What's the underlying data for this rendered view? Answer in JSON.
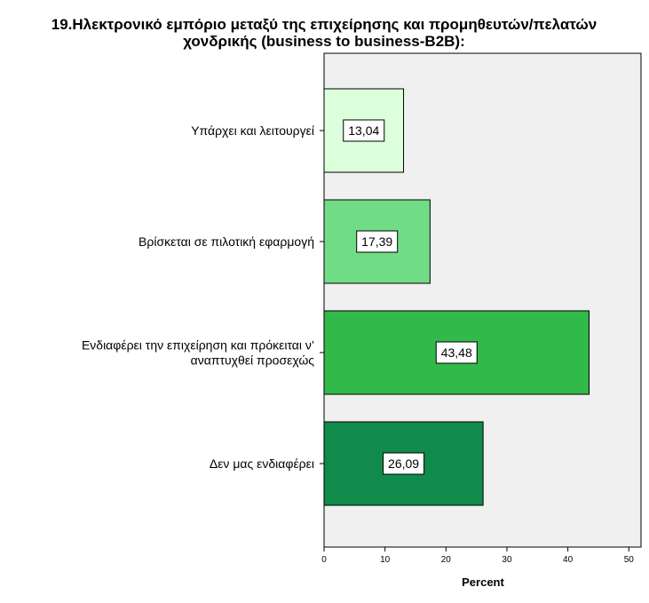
{
  "chart_data": {
    "type": "bar",
    "orientation": "horizontal",
    "title_lines": [
      "19.Ηλεκτρονικό εμπόριο μεταξύ της επιχείρησης και προμηθευτών/πελατών",
      "χονδρικής (business to business-B2B):"
    ],
    "categories": [
      [
        "Υπάρχει και λειτουργεί"
      ],
      [
        "Βρίσκεται σε πιλοτική εφαρμογή"
      ],
      [
        "Ενδιαφέρει την επιχείρηση και πρόκειται ν’",
        "αναπτυχθεί προσεχώς"
      ],
      [
        "Δεν μας ενδιαφέρει"
      ]
    ],
    "values": [
      13.04,
      17.39,
      43.48,
      26.09
    ],
    "data_labels": [
      "13,04",
      "17,39",
      "43,48",
      "26,09"
    ],
    "colors": [
      "#dcffdc",
      "#70dc85",
      "#31b94a",
      "#108b4b"
    ],
    "xlabel": "Percent",
    "xlim": [
      0,
      52
    ],
    "xticks": [
      0,
      10,
      20,
      30,
      40,
      50
    ],
    "plot_background": "#f0f0f0",
    "grid": false,
    "legend": "none"
  }
}
